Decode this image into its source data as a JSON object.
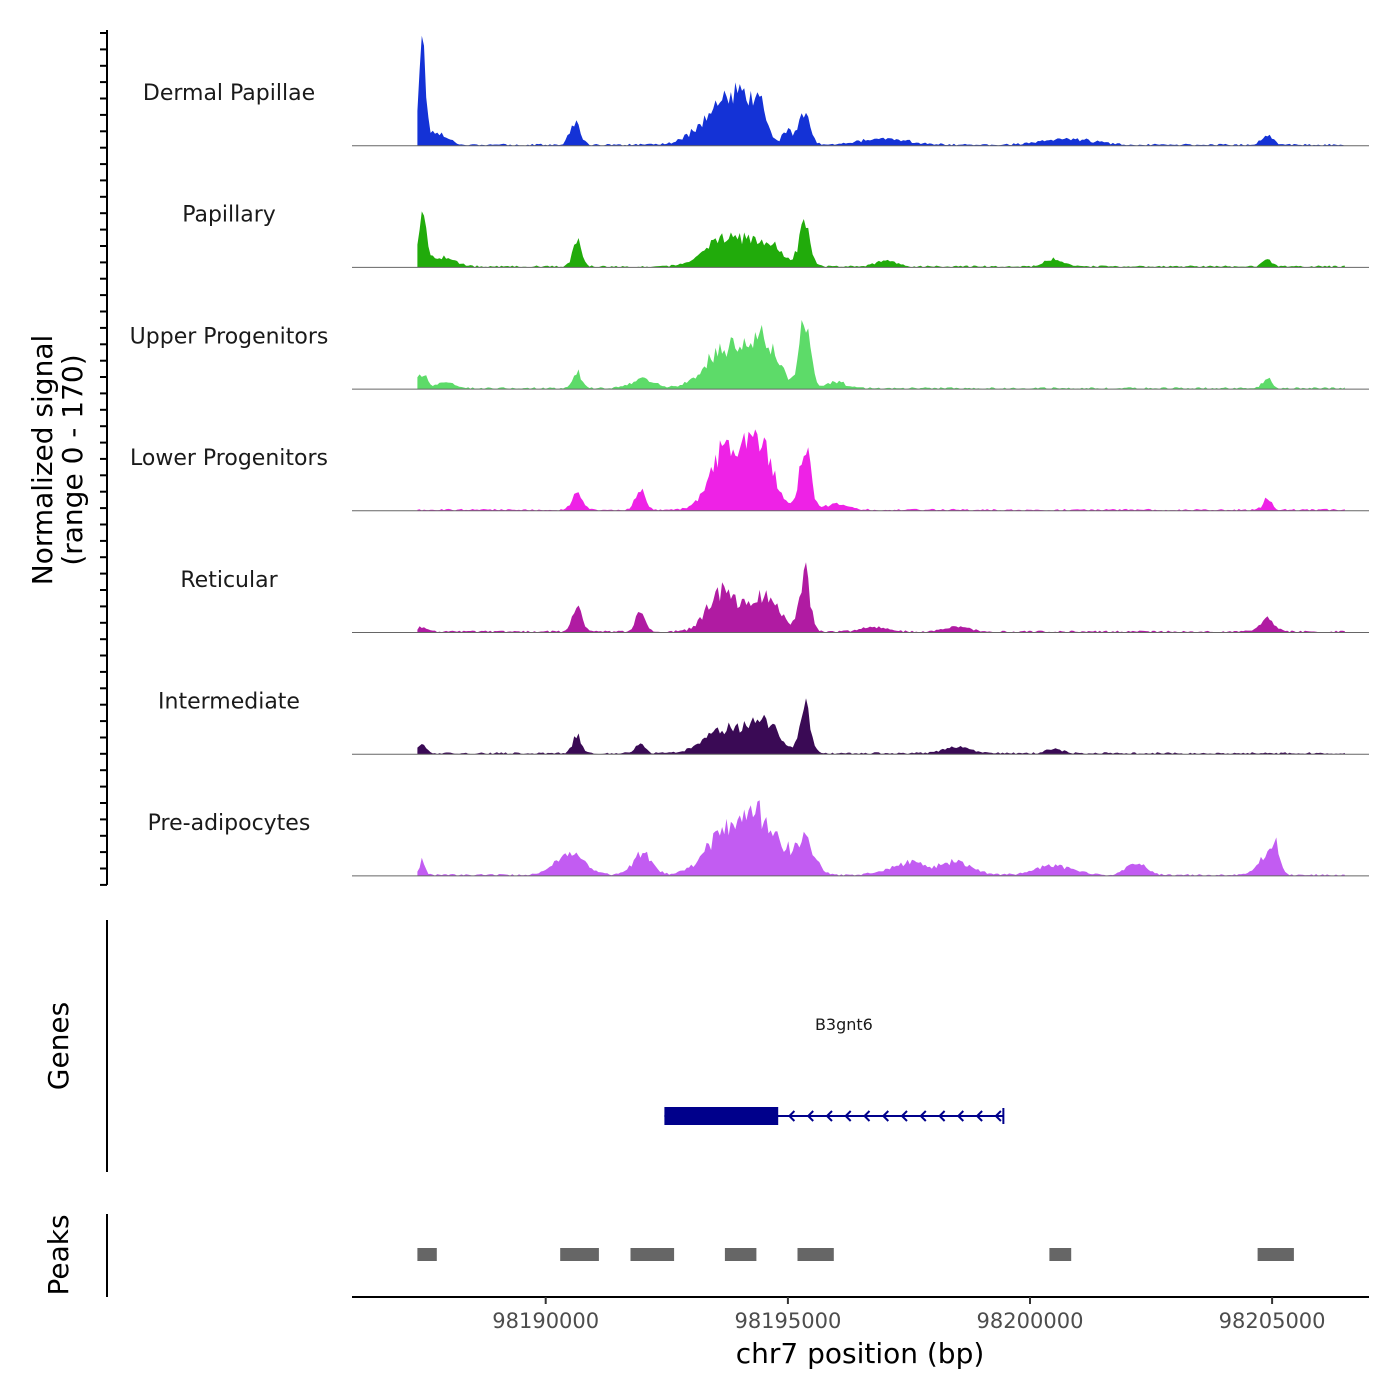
{
  "chart_data": {
    "type": "area",
    "title": "",
    "xlabel": "chr7 position (bp)",
    "ylabel": "Normalized signal",
    "ylabel_sub": "(range 0 - 170)",
    "xlim": [
      98186000,
      98207000
    ],
    "xticks": [
      98190000,
      98195000,
      98200000,
      98205000
    ],
    "ylim": [
      0,
      170
    ],
    "series": [
      {
        "name": "Dermal Papillae",
        "color": "#1432D6",
        "peaks": [
          [
            98187450,
            165,
            70
          ],
          [
            98187750,
            20,
            220
          ],
          [
            98190600,
            35,
            110
          ],
          [
            98193500,
            45,
            400
          ],
          [
            98194000,
            60,
            300
          ],
          [
            98194400,
            50,
            160
          ],
          [
            98195000,
            25,
            100
          ],
          [
            98195350,
            55,
            110
          ],
          [
            98197000,
            10,
            500
          ],
          [
            98200800,
            10,
            500
          ],
          [
            98204900,
            15,
            120
          ]
        ]
      },
      {
        "name": "Papillary",
        "color": "#21AB0B",
        "peaks": [
          [
            98187450,
            95,
            80
          ],
          [
            98187850,
            15,
            250
          ],
          [
            98190650,
            40,
            90
          ],
          [
            98193700,
            45,
            400
          ],
          [
            98194500,
            40,
            350
          ],
          [
            98195350,
            70,
            110
          ],
          [
            98197000,
            10,
            200
          ],
          [
            98200500,
            12,
            200
          ],
          [
            98204900,
            12,
            100
          ]
        ]
      },
      {
        "name": "Upper Progenitors",
        "color": "#5DDB69",
        "peaks": [
          [
            98187450,
            25,
            90
          ],
          [
            98187900,
            10,
            180
          ],
          [
            98190650,
            28,
            90
          ],
          [
            98192000,
            15,
            250
          ],
          [
            98193700,
            65,
            400
          ],
          [
            98194500,
            75,
            300
          ],
          [
            98195350,
            110,
            110
          ],
          [
            98196000,
            10,
            200
          ],
          [
            98204900,
            18,
            90
          ]
        ]
      },
      {
        "name": "Lower Progenitors",
        "color": "#EE22E6",
        "peaks": [
          [
            98190650,
            25,
            110
          ],
          [
            98191950,
            35,
            100
          ],
          [
            98193650,
            80,
            300
          ],
          [
            98194100,
            60,
            300
          ],
          [
            98194500,
            75,
            250
          ],
          [
            98195350,
            115,
            110
          ],
          [
            98196000,
            10,
            250
          ],
          [
            98204900,
            18,
            90
          ]
        ]
      },
      {
        "name": "Reticular",
        "color": "#B01BA2",
        "peaks": [
          [
            98187450,
            8,
            80
          ],
          [
            98190650,
            40,
            100
          ],
          [
            98191950,
            30,
            100
          ],
          [
            98193650,
            65,
            300
          ],
          [
            98194500,
            60,
            300
          ],
          [
            98195350,
            95,
            110
          ],
          [
            98196800,
            8,
            250
          ],
          [
            98198500,
            8,
            250
          ],
          [
            98204900,
            20,
            150
          ]
        ]
      },
      {
        "name": "Intermediate",
        "color": "#3A0A55",
        "peaks": [
          [
            98187450,
            18,
            80
          ],
          [
            98190650,
            30,
            90
          ],
          [
            98191950,
            15,
            100
          ],
          [
            98193700,
            40,
            400
          ],
          [
            98194500,
            50,
            300
          ],
          [
            98195350,
            80,
            110
          ],
          [
            98198500,
            10,
            300
          ],
          [
            98200500,
            8,
            150
          ]
        ]
      },
      {
        "name": "Pre-adipocytes",
        "color": "#C25CF2",
        "peaks": [
          [
            98187450,
            25,
            60
          ],
          [
            98190500,
            35,
            300
          ],
          [
            98192000,
            35,
            200
          ],
          [
            98193700,
            70,
            400
          ],
          [
            98194500,
            90,
            350
          ],
          [
            98195350,
            55,
            200
          ],
          [
            98197500,
            20,
            400
          ],
          [
            98198500,
            22,
            300
          ],
          [
            98200500,
            15,
            400
          ],
          [
            98202200,
            20,
            200
          ],
          [
            98204800,
            25,
            150
          ],
          [
            98205050,
            50,
            100
          ]
        ]
      }
    ],
    "genes": [
      {
        "name": "B3gnt6",
        "start": 98192450,
        "end": 98199450,
        "strand": "-",
        "exons": [
          [
            98192450,
            98194800
          ]
        ]
      }
    ],
    "peaks": [
      [
        98187350,
        98187750
      ],
      [
        98190300,
        98191100
      ],
      [
        98191750,
        98192650
      ],
      [
        98193700,
        98194350
      ],
      [
        98195200,
        98195950
      ],
      [
        98200400,
        98200850
      ],
      [
        98204700,
        98205450
      ]
    ],
    "panel_labels": {
      "genes": "Genes",
      "peaks": "Peaks"
    }
  }
}
